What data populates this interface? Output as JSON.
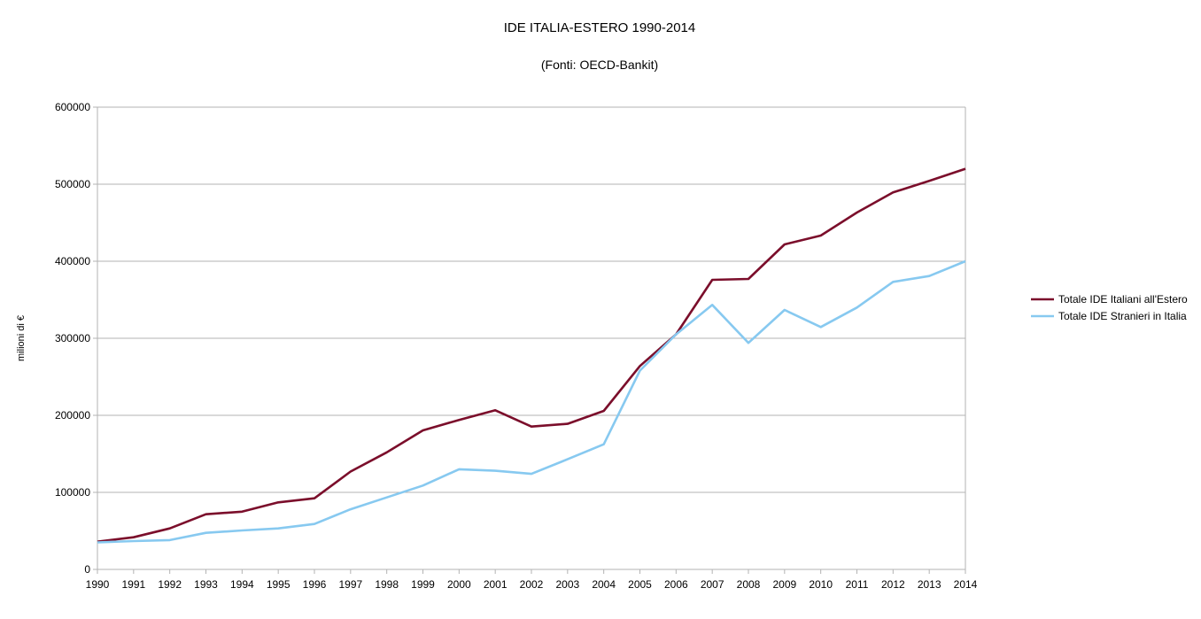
{
  "chart_data": {
    "type": "line",
    "title": "IDE ITALIA-ESTERO 1990-2014",
    "subtitle": "(Fonti: OECD-Bankit)",
    "xlabel": "",
    "ylabel": "milioni di €",
    "ylim": [
      0,
      600000
    ],
    "yticks": [
      "0",
      "100000",
      "200000",
      "300000",
      "400000",
      "500000",
      "600000"
    ],
    "ytick_values": [
      0,
      100000,
      200000,
      300000,
      400000,
      500000,
      600000
    ],
    "grid": true,
    "legend_position": "right",
    "categories": [
      "1990",
      "1991",
      "1992",
      "1993",
      "1994",
      "1995",
      "1996",
      "1997",
      "1998",
      "1999",
      "2000",
      "2001",
      "2002",
      "2003",
      "2004",
      "2005",
      "2006",
      "2007",
      "2008",
      "2009",
      "2010",
      "2011",
      "2012",
      "2013",
      "2014"
    ],
    "series": [
      {
        "name": "Totale IDE Italiani all'Estero",
        "color": "#7b0e2b",
        "values": [
          36000,
          41700,
          53200,
          71600,
          75000,
          87000,
          92300,
          127000,
          152000,
          180500,
          194000,
          206500,
          185400,
          189000,
          205700,
          264000,
          305000,
          375900,
          377000,
          421800,
          433300,
          463200,
          489300,
          504200,
          520000
        ]
      },
      {
        "name": "Totale IDE Stranieri in Italia",
        "color": "#87c9f0",
        "values": [
          35000,
          36800,
          38000,
          47500,
          50600,
          53200,
          59000,
          78000,
          93500,
          108800,
          130000,
          128000,
          124000,
          143000,
          162400,
          258000,
          305000,
          343300,
          294000,
          336800,
          314600,
          339900,
          373200,
          380800,
          400000
        ]
      }
    ]
  }
}
